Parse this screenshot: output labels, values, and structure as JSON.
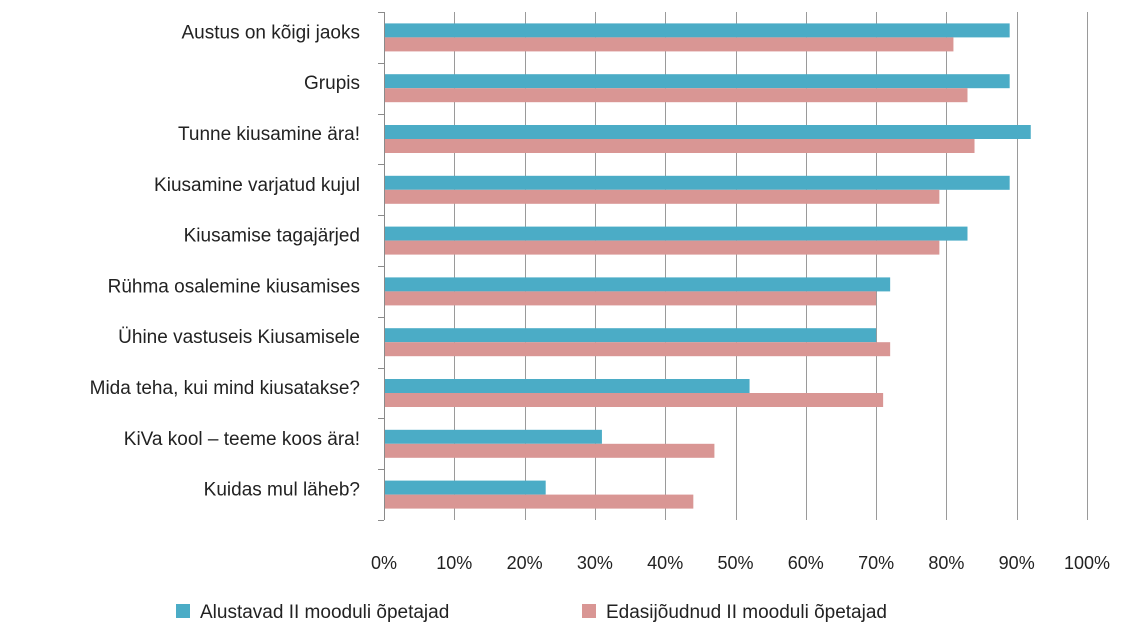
{
  "chart_data": {
    "type": "bar",
    "orientation": "horizontal",
    "categories": [
      "Austus on kõigi jaoks",
      "Grupis",
      "Tunne kiusamine ära!",
      "Kiusamine varjatud kujul",
      "Kiusamise tagajärjed",
      "Rühma osalemine kiusamises",
      "Ühine vastuseis Kiusamisele",
      "Mida teha, kui mind kiusatakse?",
      "KiVa kool – teeme  koos ära!",
      "Kuidas mul läheb?"
    ],
    "series": [
      {
        "name": "Alustavad II mooduli õpetajad",
        "color": "#4bacc6",
        "values": [
          89,
          89,
          92,
          89,
          83,
          72,
          70,
          52,
          31,
          23
        ]
      },
      {
        "name": "Edasijõudnud II mooduli õpetajad",
        "color": "#d99694",
        "values": [
          81,
          83,
          84,
          79,
          79,
          70,
          72,
          71,
          47,
          44
        ]
      }
    ],
    "xticks": [
      "0%",
      "10%",
      "20%",
      "30%",
      "40%",
      "50%",
      "60%",
      "70%",
      "80%",
      "90%",
      "100%"
    ],
    "xlim": [
      0,
      100
    ],
    "grid": true,
    "legend_position": "bottom"
  }
}
